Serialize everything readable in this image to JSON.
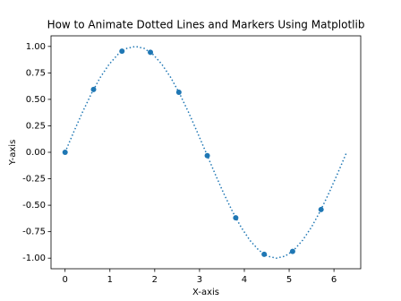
{
  "chart_data": {
    "type": "line",
    "title": "How to Animate Dotted Lines and Markers Using Matplotlib",
    "x_label": "X-axis",
    "y_label": "Y-axis",
    "xlim": [
      -0.314,
      6.597
    ],
    "ylim": [
      -1.1,
      1.1
    ],
    "xticks": [
      0,
      1,
      2,
      3,
      4,
      5,
      6
    ],
    "yticks": [
      {
        "value": -1,
        "label": "-1.00"
      },
      {
        "value": -0.75,
        "label": "-0.75"
      },
      {
        "value": -0.5,
        "label": "-0.50"
      },
      {
        "value": -0.25,
        "label": "-0.25"
      },
      {
        "value": 0,
        "label": "0.00"
      },
      0.25,
      {
        "value": 0.5,
        "label": "0.50"
      },
      0.75,
      {
        "value": 1,
        "label": "1.00"
      }
    ],
    "grid": false,
    "series": [
      {
        "color": "#1f77b4",
        "linestyle": "dotted",
        "marker": "none",
        "x": [
          0,
          0.196,
          0.393,
          0.589,
          0.785,
          0.982,
          1.178,
          1.374,
          1.571,
          1.767,
          1.963,
          2.16,
          2.356,
          2.553,
          2.749,
          2.945,
          3.142,
          3.338,
          3.534,
          3.731,
          3.927,
          4.123,
          4.32,
          4.516,
          4.712,
          4.909,
          5.105,
          5.301,
          5.498,
          5.694,
          5.89,
          6.087,
          6.283
        ],
        "values": [
          0,
          0.195,
          0.383,
          0.556,
          0.707,
          0.831,
          0.924,
          0.981,
          1,
          0.981,
          0.924,
          0.831,
          0.707,
          0.556,
          0.383,
          0.195,
          0,
          -0.195,
          -0.383,
          -0.556,
          -0.707,
          -0.831,
          -0.924,
          -0.981,
          -1,
          -0.981,
          -0.924,
          -0.831,
          -0.707,
          -0.556,
          -0.383,
          -0.195,
          0
        ]
      },
      {
        "color": "#1f77b4",
        "linestyle": "none",
        "marker": "circle",
        "x": [
          0,
          0.635,
          1.269,
          1.904,
          2.539,
          3.173,
          3.808,
          4.443,
          5.077,
          5.712
        ],
        "values": [
          0,
          0.593,
          0.955,
          0.945,
          0.567,
          -0.032,
          -0.619,
          -0.964,
          -0.936,
          -0.541
        ]
      }
    ]
  }
}
